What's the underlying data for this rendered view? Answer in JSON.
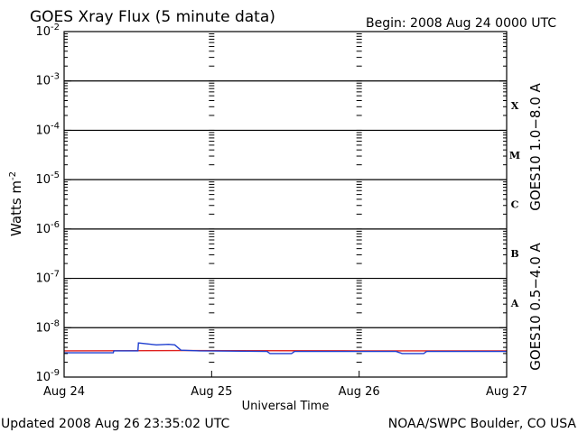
{
  "chart_data": {
    "type": "line",
    "title": "GOES Xray Flux (5 minute data)",
    "begin_label": "Begin:  2008 Aug 24 0000 UTC",
    "ylabel": "Watts m",
    "ylabel_sup": "-2",
    "xlabel": "Universal Time",
    "y_scale": "log",
    "ylim": [
      1e-09,
      0.01
    ],
    "xlim": [
      0,
      72
    ],
    "x_unit": "hours since 2008 Aug 24 0000 UTC",
    "x_ticks": [
      {
        "value": 0,
        "label": "Aug 24"
      },
      {
        "value": 24,
        "label": "Aug 25"
      },
      {
        "value": 48,
        "label": "Aug 26"
      },
      {
        "value": 72,
        "label": "Aug 27"
      }
    ],
    "y_ticks": [
      {
        "exp": -9,
        "base": "10",
        "sup": "-9"
      },
      {
        "exp": -8,
        "base": "10",
        "sup": "-8"
      },
      {
        "exp": -7,
        "base": "10",
        "sup": "-7"
      },
      {
        "exp": -6,
        "base": "10",
        "sup": "-6"
      },
      {
        "exp": -5,
        "base": "10",
        "sup": "-5"
      },
      {
        "exp": -4,
        "base": "10",
        "sup": "-4"
      },
      {
        "exp": -3,
        "base": "10",
        "sup": "-3"
      },
      {
        "exp": -2,
        "base": "10",
        "sup": "-2"
      }
    ],
    "flare_classes": [
      {
        "label": "A",
        "exp": -8
      },
      {
        "label": "B",
        "exp": -7
      },
      {
        "label": "C",
        "exp": -6
      },
      {
        "label": "M",
        "exp": -5
      },
      {
        "label": "X",
        "exp": -4
      }
    ],
    "grid": "horizontal lines at decades -8 to -3, dashed day markers at Aug 25 and Aug 26",
    "series": [
      {
        "name": "GOES10 1.0−8.0 A",
        "color": "#e0201e",
        "points": [
          [
            0,
            3.4e-09
          ],
          [
            20,
            3.45e-09
          ],
          [
            48,
            3.4e-09
          ],
          [
            72,
            3.4e-09
          ]
        ]
      },
      {
        "name": "GOES10 0.5−4.0 A",
        "color": "#1f3fd0",
        "points": [
          [
            0,
            3.1e-09
          ],
          [
            8.0,
            3.1e-09
          ],
          [
            8.1,
            3.4e-09
          ],
          [
            12.0,
            3.4e-09
          ],
          [
            12.1,
            4.9e-09
          ],
          [
            13.5,
            4.7e-09
          ],
          [
            15.0,
            4.5e-09
          ],
          [
            17.0,
            4.6e-09
          ],
          [
            18.0,
            4.5e-09
          ],
          [
            19.0,
            3.5e-09
          ],
          [
            22.0,
            3.4e-09
          ],
          [
            33.0,
            3.3e-09
          ],
          [
            33.5,
            3e-09
          ],
          [
            37.0,
            3e-09
          ],
          [
            37.5,
            3.3e-09
          ],
          [
            54.0,
            3.3e-09
          ],
          [
            55.0,
            3e-09
          ],
          [
            58.5,
            3e-09
          ],
          [
            59.0,
            3.3e-09
          ],
          [
            72,
            3.3e-09
          ]
        ]
      }
    ]
  },
  "footer": {
    "updated": "Updated 2008 Aug 26 23:35:02 UTC",
    "credit": "NOAA/SWPC Boulder, CO USA"
  }
}
